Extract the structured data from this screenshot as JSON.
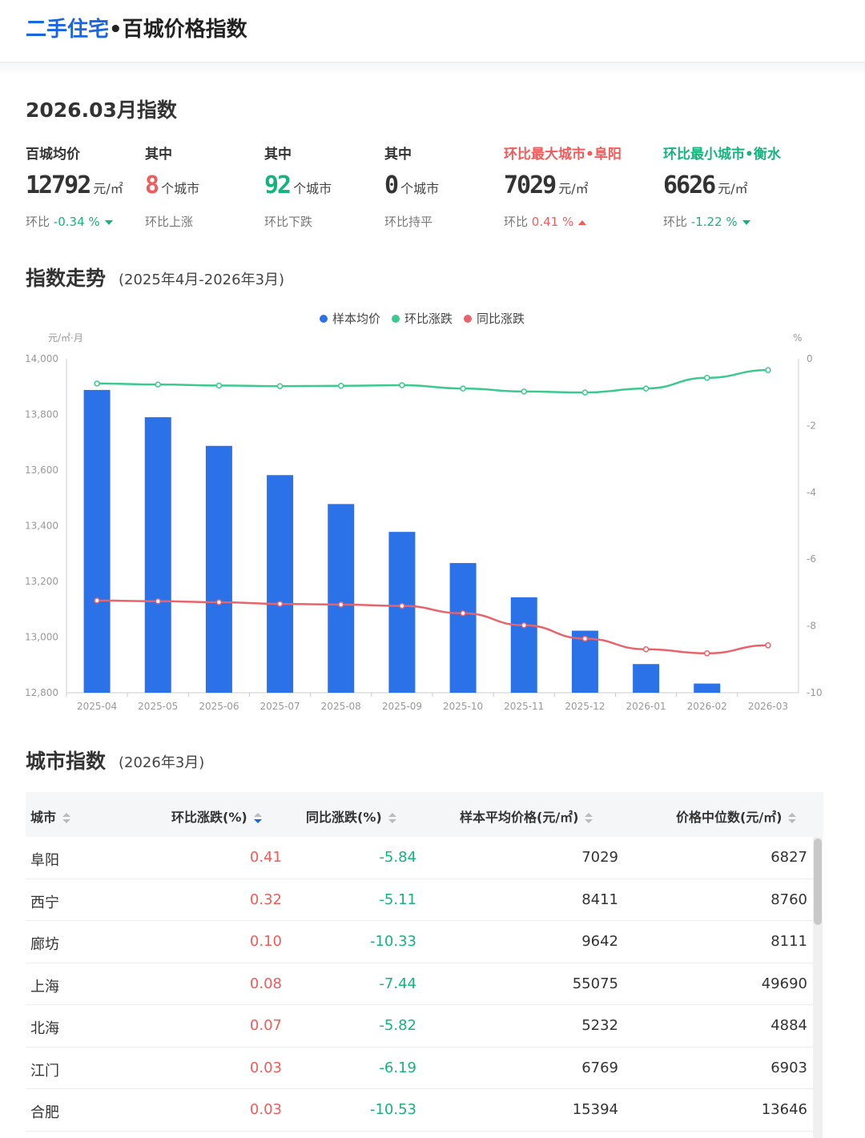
{
  "header": {
    "title_blue": "二手住宅",
    "title_rest": "•百城价格指数"
  },
  "summary": {
    "title": "2026.03月指数",
    "stats": [
      {
        "label": "百城均价",
        "value": "12792",
        "unit": "元/㎡",
        "sub_prefix": "环比",
        "sub_value": "-0.34 %",
        "trend": "down"
      },
      {
        "label": "其中",
        "value": "8",
        "unit": "个城市",
        "sub_text": "环比上涨",
        "value_color": "red"
      },
      {
        "label": "其中",
        "value": "92",
        "unit": "个城市",
        "sub_text": "环比下跌",
        "value_color": "green"
      },
      {
        "label": "其中",
        "value": "0",
        "unit": "个城市",
        "sub_text": "环比持平"
      },
      {
        "label": "环比最大城市•阜阳",
        "value": "7029",
        "unit": "元/㎡",
        "sub_prefix": "环比",
        "sub_value": "0.41 %",
        "trend": "up",
        "label_color": "red"
      },
      {
        "label": "环比最小城市•衡水",
        "value": "6626",
        "unit": "元/㎡",
        "sub_prefix": "环比",
        "sub_value": "-1.22 %",
        "trend": "down",
        "label_color": "green"
      }
    ]
  },
  "trend_section": {
    "title": "指数走势",
    "subtitle": "(2025年4月-2026年3月)"
  },
  "chart_data": {
    "type": "bar",
    "categories": [
      "2025-04",
      "2025-05",
      "2025-06",
      "2025-07",
      "2025-08",
      "2025-09",
      "2025-10",
      "2025-11",
      "2025-12",
      "2026-01",
      "2026-02",
      "2026-03"
    ],
    "series": [
      {
        "name": "样本均价",
        "type": "bar",
        "axis": "left",
        "color": "#2b72e8",
        "values": [
          13888,
          13790,
          13687,
          13582,
          13478,
          13378,
          13266,
          13143,
          13023,
          12903,
          12833,
          12792
        ]
      },
      {
        "name": "环比涨跌",
        "type": "line",
        "axis": "right",
        "color": "#3cc98e",
        "values": [
          -0.74,
          -0.77,
          -0.8,
          -0.82,
          -0.81,
          -0.79,
          -0.89,
          -0.98,
          -1.01,
          -0.89,
          -0.57,
          -0.34
        ]
      },
      {
        "name": "同比涨跌",
        "type": "line",
        "axis": "right",
        "color": "#e8636b",
        "values": [
          -7.24,
          -7.26,
          -7.29,
          -7.34,
          -7.36,
          -7.4,
          -7.62,
          -7.98,
          -8.38,
          -8.7,
          -8.82,
          -8.58
        ]
      }
    ],
    "left_axis": {
      "label": "元/㎡·月",
      "ylim": [
        12800,
        14000
      ],
      "ticks": [
        "12,800",
        "13,000",
        "13,200",
        "13,400",
        "13,600",
        "13,800",
        "14,000"
      ]
    },
    "right_axis": {
      "label": "%",
      "ylim": [
        -10,
        0
      ],
      "ticks": [
        "-10",
        "-8",
        "-6",
        "-4",
        "-2",
        "0"
      ]
    },
    "legend_position": "top-center",
    "grid": false
  },
  "city_section": {
    "title": "城市指数",
    "subtitle": "(2026年3月)"
  },
  "table": {
    "columns": [
      "城市",
      "环比涨跌(%)",
      "同比涨跌(%)",
      "样本平均价格(元/㎡)",
      "价格中位数(元/㎡)"
    ],
    "rows": [
      {
        "city": "阜阳",
        "mom": "0.41",
        "yoy": "-5.84",
        "avg": "7029",
        "median": "6827"
      },
      {
        "city": "西宁",
        "mom": "0.32",
        "yoy": "-5.11",
        "avg": "8411",
        "median": "8760"
      },
      {
        "city": "廊坊",
        "mom": "0.10",
        "yoy": "-10.33",
        "avg": "9642",
        "median": "8111"
      },
      {
        "city": "上海",
        "mom": "0.08",
        "yoy": "-7.44",
        "avg": "55075",
        "median": "49690"
      },
      {
        "city": "北海",
        "mom": "0.07",
        "yoy": "-5.82",
        "avg": "5232",
        "median": "4884"
      },
      {
        "city": "江门",
        "mom": "0.03",
        "yoy": "-6.19",
        "avg": "6769",
        "median": "6903"
      },
      {
        "city": "合肥",
        "mom": "0.03",
        "yoy": "-10.53",
        "avg": "15394",
        "median": "13646"
      }
    ]
  }
}
